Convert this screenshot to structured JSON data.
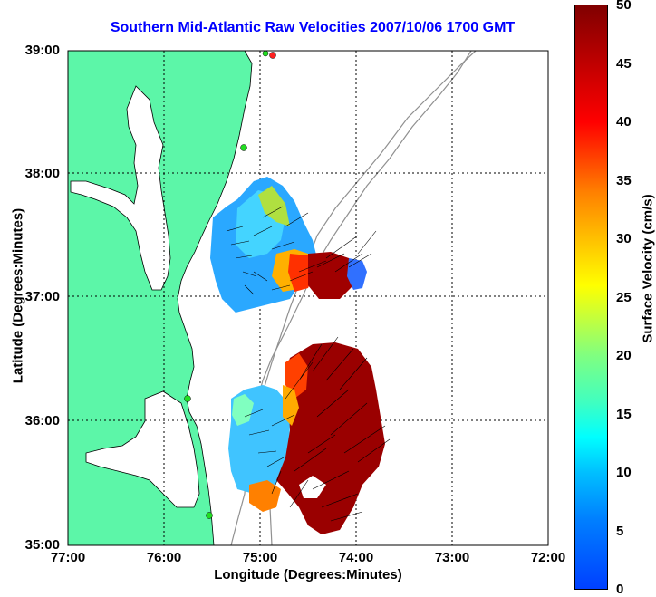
{
  "title": "Southern Mid-Atlantic Raw Velocities 2007/10/06 1700 GMT",
  "axes": {
    "xlabel": "Longitude (Degrees:Minutes)",
    "ylabel": "Latitude (Degrees:Minutes)",
    "xticks": [
      "77:00",
      "76:00",
      "75:00",
      "74:00",
      "73:00",
      "72:00"
    ],
    "yticks": [
      "39:00",
      "38:00",
      "37:00",
      "36:00",
      "35:00"
    ]
  },
  "colorbar": {
    "label": "Surface Velocity (cm/s)",
    "ticks": [
      "50",
      "45",
      "40",
      "35",
      "30",
      "25",
      "20",
      "15",
      "10",
      "5",
      "0"
    ],
    "range": [
      0,
      50
    ]
  },
  "colors": {
    "land": "#5cf6a8",
    "title": "#0000ff",
    "station_marker": "#22dd22",
    "active_station": "#ff2020"
  }
}
